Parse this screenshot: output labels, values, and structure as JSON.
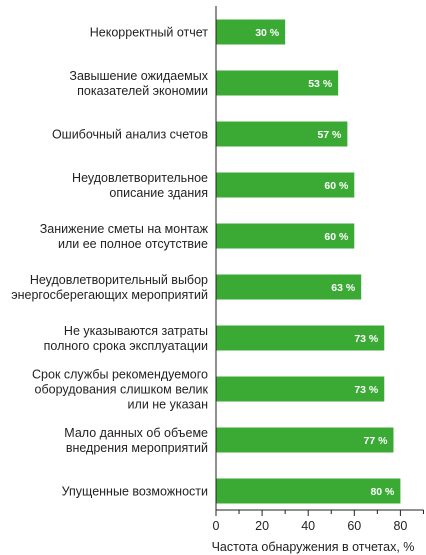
{
  "chart_data": {
    "type": "bar",
    "orientation": "horizontal",
    "categories": [
      [
        "Некорректный отчет"
      ],
      [
        "Завышение ожидаемых",
        "показателей экономии"
      ],
      [
        "Ошибочный анализ счетов"
      ],
      [
        "Неудовлетворительное",
        "описание здания"
      ],
      [
        "Занижение сметы на монтаж",
        "или ее полное отсутствие"
      ],
      [
        "Неудовлетворительный выбор",
        "энергосберегающих мероприятий"
      ],
      [
        "Не указываются затраты",
        "полного срока эксплуатации"
      ],
      [
        "Срок службы рекомендуемого",
        "оборудования слишком велик",
        "или не указан"
      ],
      [
        "Мало данных об объеме",
        "внедрения мероприятий"
      ],
      [
        "Упущенные возможности"
      ]
    ],
    "values": [
      30,
      53,
      57,
      60,
      60,
      63,
      73,
      73,
      77,
      80
    ],
    "data_labels": [
      "30 %",
      "53 %",
      "57 %",
      "60 %",
      "60 %",
      "63 %",
      "73 %",
      "73 %",
      "77 %",
      "80 %"
    ],
    "xlabel": "Частота обнаружения в отчетах, %",
    "xticks": [
      "0",
      "20",
      "40",
      "60",
      "80"
    ],
    "xlim": [
      0,
      90
    ],
    "grid": false,
    "legend": "none",
    "bar_color": "#3aaa35"
  }
}
